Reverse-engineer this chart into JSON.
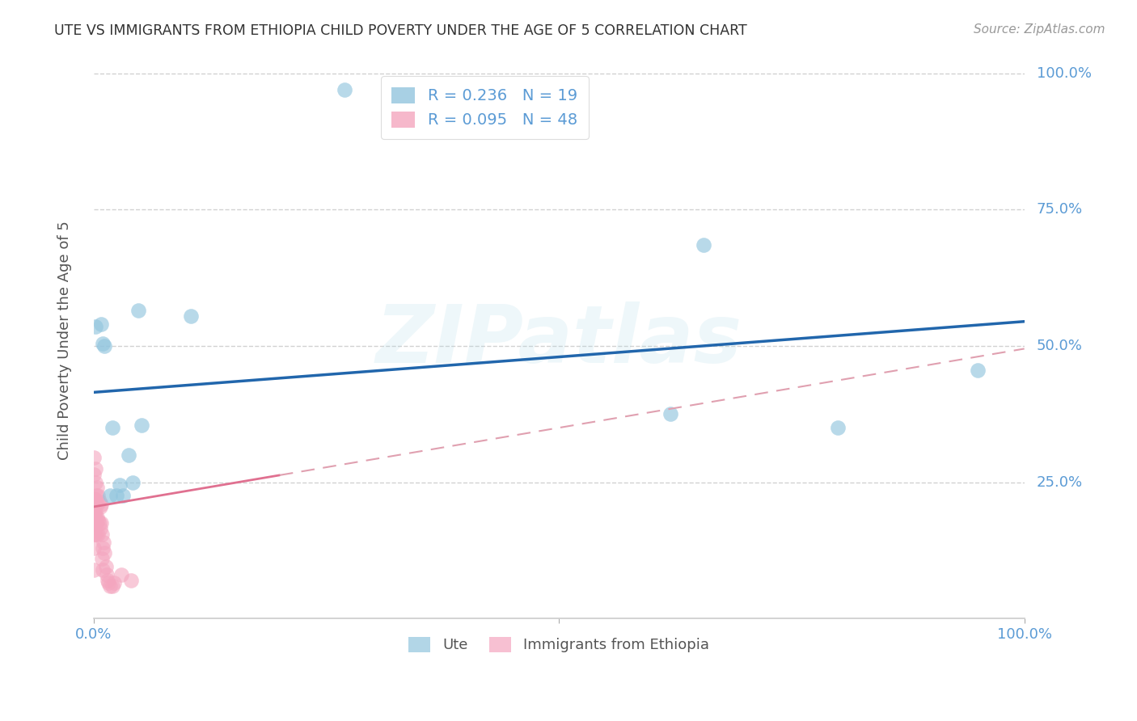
{
  "title": "UTE VS IMMIGRANTS FROM ETHIOPIA CHILD POVERTY UNDER THE AGE OF 5 CORRELATION CHART",
  "source": "Source: ZipAtlas.com",
  "ylabel": "Child Poverty Under the Age of 5",
  "xlim": [
    0,
    1
  ],
  "ylim": [
    0,
    1.02
  ],
  "watermark": "ZIPatlas",
  "ute_R": 0.236,
  "ute_N": 19,
  "ethiopia_R": 0.095,
  "ethiopia_N": 48,
  "ute_color": "#92c5de",
  "ethiopia_color": "#f4a6bf",
  "ute_line_color": "#2166ac",
  "ethiopia_line_solid_color": "#e07090",
  "ethiopia_line_dash_color": "#e0a0b0",
  "ute_x": [
    0.002,
    0.008,
    0.01,
    0.012,
    0.018,
    0.02,
    0.025,
    0.028,
    0.032,
    0.038,
    0.042,
    0.048,
    0.052,
    0.105,
    0.27,
    0.62,
    0.655,
    0.8,
    0.95
  ],
  "ute_y": [
    0.535,
    0.54,
    0.505,
    0.5,
    0.225,
    0.35,
    0.225,
    0.245,
    0.225,
    0.3,
    0.25,
    0.565,
    0.355,
    0.555,
    0.97,
    0.375,
    0.685,
    0.35,
    0.455
  ],
  "eth_x": [
    0.0,
    0.0,
    0.0,
    0.0,
    0.0,
    0.0,
    0.0,
    0.0,
    0.0,
    0.001,
    0.001,
    0.001,
    0.001,
    0.001,
    0.002,
    0.002,
    0.002,
    0.002,
    0.003,
    0.003,
    0.003,
    0.004,
    0.004,
    0.004,
    0.005,
    0.005,
    0.005,
    0.006,
    0.006,
    0.007,
    0.007,
    0.008,
    0.008,
    0.009,
    0.009,
    0.01,
    0.01,
    0.011,
    0.012,
    0.013,
    0.014,
    0.015,
    0.016,
    0.018,
    0.02,
    0.022,
    0.03,
    0.04
  ],
  "eth_y": [
    0.195,
    0.205,
    0.09,
    0.13,
    0.155,
    0.175,
    0.22,
    0.265,
    0.295,
    0.19,
    0.21,
    0.155,
    0.175,
    0.22,
    0.195,
    0.215,
    0.25,
    0.275,
    0.155,
    0.175,
    0.225,
    0.185,
    0.21,
    0.24,
    0.155,
    0.18,
    0.225,
    0.175,
    0.215,
    0.165,
    0.205,
    0.175,
    0.21,
    0.11,
    0.155,
    0.09,
    0.13,
    0.14,
    0.12,
    0.095,
    0.08,
    0.07,
    0.065,
    0.06,
    0.06,
    0.065,
    0.08,
    0.07
  ],
  "ute_trend_x0": 0.0,
  "ute_trend_y0": 0.415,
  "ute_trend_x1": 1.0,
  "ute_trend_y1": 0.545,
  "eth_trend_x0": 0.0,
  "eth_trend_y0": 0.205,
  "eth_trend_x1": 1.0,
  "eth_trend_y1": 0.495,
  "grid_color": "#cccccc",
  "background_color": "#ffffff",
  "title_color": "#333333",
  "axis_color": "#5b9bd5"
}
